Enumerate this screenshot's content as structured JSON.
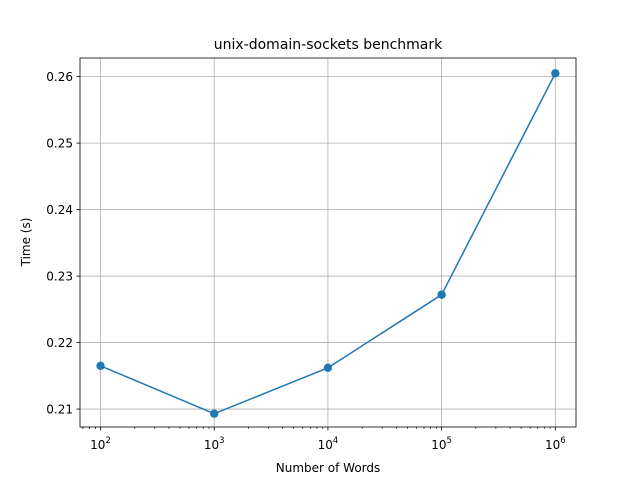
{
  "chart_data": {
    "type": "line",
    "title": "unix-domain-sockets benchmark",
    "xlabel": "Number of Words",
    "ylabel": "Time (s)",
    "x_scale": "log",
    "x_ticks": [
      {
        "value": 100,
        "base": "10",
        "exp": "2"
      },
      {
        "value": 1000,
        "base": "10",
        "exp": "3"
      },
      {
        "value": 10000,
        "base": "10",
        "exp": "4"
      },
      {
        "value": 100000,
        "base": "10",
        "exp": "5"
      },
      {
        "value": 1000000,
        "base": "10",
        "exp": "6"
      }
    ],
    "y_ticks": [
      0.21,
      0.22,
      0.23,
      0.24,
      0.25,
      0.26
    ],
    "y_tick_labels": [
      "0.21",
      "0.22",
      "0.23",
      "0.24",
      "0.25",
      "0.26"
    ],
    "xlim": [
      66,
      1520000
    ],
    "ylim": [
      0.2073,
      0.2628
    ],
    "grid": true,
    "color": "#1f77b4",
    "marker": "circle",
    "series": [
      {
        "x": [
          100,
          1000,
          10000,
          100000,
          1000000
        ],
        "y": [
          0.2165,
          0.2093,
          0.2162,
          0.2272,
          0.2605
        ]
      }
    ]
  }
}
